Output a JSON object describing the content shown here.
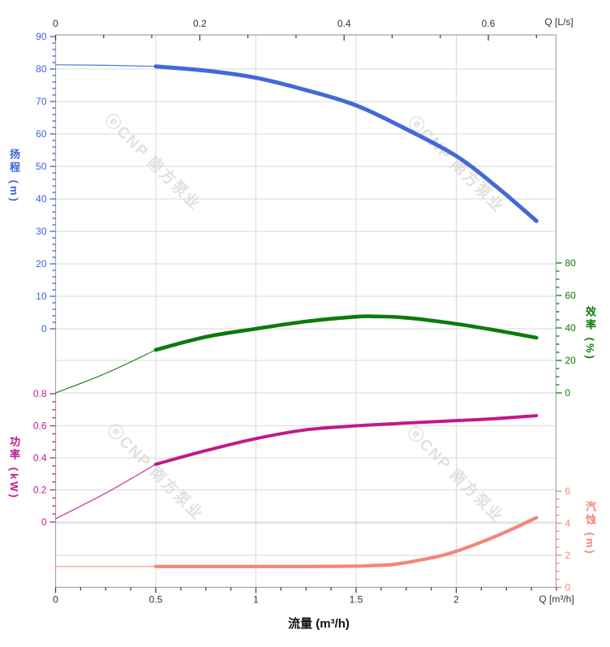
{
  "watermark": {
    "text": "ⓔCNP 南方泵业"
  },
  "chart_data": {
    "type": "line",
    "title": "",
    "grid": true,
    "axes": {
      "flow_bottom": {
        "title": "流量 (m³/h)",
        "unit_label": "Q [m³/h]",
        "range": [
          0,
          2.5
        ],
        "major_ticks": [
          0,
          0.5,
          1,
          1.5,
          2
        ],
        "major_labels": [
          "0",
          "0.5",
          "1",
          "1.5",
          "2"
        ],
        "minor_step": 0.125,
        "color": "#333333"
      },
      "flow_top": {
        "unit_label": "Q [L/s]",
        "range": [
          0,
          0.6944
        ],
        "major_ticks": [
          0,
          0.2,
          0.4,
          0.6
        ],
        "major_labels": [
          "0",
          "0.2",
          "0.4",
          "0.6"
        ],
        "minor_step": 0.066667,
        "color": "#333333",
        "conversion_to_bottom": 3.6
      },
      "head_left": {
        "title": "扬程 (m)",
        "range": [
          0,
          90
        ],
        "major_ticks": [
          0,
          10,
          20,
          30,
          40,
          50,
          60,
          70,
          80,
          90
        ],
        "major_labels": [
          "0",
          "10",
          "20",
          "30",
          "40",
          "50",
          "60",
          "70",
          "80",
          "90"
        ],
        "minor_step": 2,
        "color": "#3D63D9"
      },
      "power_left": {
        "title": "功率 (kW)",
        "range": [
          0,
          0.8
        ],
        "major_ticks": [
          0,
          0.2,
          0.4,
          0.6,
          0.8
        ],
        "major_labels": [
          "0",
          "0.2",
          "0.4",
          "0.6",
          "0.8"
        ],
        "minor_step": 0.05,
        "color": "#C2188C"
      },
      "efficiency_right": {
        "title": "效率 (%)",
        "range": [
          0,
          80
        ],
        "major_ticks": [
          0,
          20,
          40,
          60,
          80
        ],
        "major_labels": [
          "0",
          "20",
          "40",
          "60",
          "80"
        ],
        "minor_step": 5,
        "color": "#0B7B0B"
      },
      "npsh_right": {
        "title": "汽蚀 (m)",
        "range": [
          0,
          6
        ],
        "major_ticks": [
          0,
          2,
          4,
          6
        ],
        "major_labels": [
          "0",
          "2",
          "4",
          "6"
        ],
        "minor_step": 0.5,
        "color": "#F4857A"
      }
    },
    "gridlines": {
      "color": "#D9D9D9",
      "vertical_q": [
        0.5,
        1,
        1.5,
        2
      ],
      "horizontal": [
        {
          "axis": "head_left",
          "values": [
            0,
            10,
            20,
            30,
            40,
            50,
            60,
            70,
            80
          ]
        },
        {
          "axis": "efficiency_right",
          "values": [
            0,
            20
          ]
        },
        {
          "axis": "power_left",
          "values": [
            0,
            0.2,
            0.4,
            0.6
          ]
        },
        {
          "axis": "npsh_right",
          "values": [
            2,
            4
          ]
        }
      ]
    },
    "series": [
      {
        "name": "head",
        "axis": "head_left",
        "color": "#4468D9",
        "width": 5,
        "solid_from_q": 0.5,
        "points": [
          [
            0,
            81.3
          ],
          [
            0.25,
            81.15
          ],
          [
            0.5,
            80.8
          ],
          [
            0.75,
            79.5
          ],
          [
            1.0,
            77.3
          ],
          [
            1.25,
            73.5
          ],
          [
            1.5,
            68.8
          ],
          [
            1.75,
            61.5
          ],
          [
            2.0,
            53.2
          ],
          [
            2.2,
            43.8
          ],
          [
            2.4,
            33.2
          ]
        ]
      },
      {
        "name": "efficiency",
        "axis": "efficiency_right",
        "color": "#0B7B0B",
        "width": 4.6,
        "solid_from_q": 0.5,
        "points": [
          [
            0,
            0
          ],
          [
            0.25,
            12
          ],
          [
            0.5,
            26.5
          ],
          [
            0.75,
            34.5
          ],
          [
            1.0,
            39.5
          ],
          [
            1.25,
            44
          ],
          [
            1.5,
            46.9
          ],
          [
            1.6,
            47.1
          ],
          [
            1.75,
            46.3
          ],
          [
            2.0,
            42.5
          ],
          [
            2.2,
            38.5
          ],
          [
            2.4,
            34
          ]
        ]
      },
      {
        "name": "power",
        "axis": "power_left",
        "color": "#C2188C",
        "width": 4,
        "solid_from_q": 0.5,
        "points": [
          [
            0,
            0.02
          ],
          [
            0.25,
            0.18
          ],
          [
            0.5,
            0.36
          ],
          [
            0.75,
            0.445
          ],
          [
            1.0,
            0.52
          ],
          [
            1.25,
            0.575
          ],
          [
            1.5,
            0.6
          ],
          [
            1.75,
            0.617
          ],
          [
            2.0,
            0.632
          ],
          [
            2.2,
            0.645
          ],
          [
            2.4,
            0.663
          ]
        ]
      },
      {
        "name": "npsh",
        "axis": "npsh_right",
        "color": "#F4857A",
        "width": 4.2,
        "solid_from_q": 0.5,
        "points": [
          [
            0,
            1.3
          ],
          [
            0.5,
            1.3
          ],
          [
            1.0,
            1.3
          ],
          [
            1.3,
            1.3
          ],
          [
            1.5,
            1.32
          ],
          [
            1.6,
            1.37
          ],
          [
            1.7,
            1.45
          ],
          [
            1.9,
            1.9
          ],
          [
            2.0,
            2.25
          ],
          [
            2.1,
            2.7
          ],
          [
            2.2,
            3.2
          ],
          [
            2.3,
            3.75
          ],
          [
            2.4,
            4.35
          ]
        ]
      }
    ]
  }
}
